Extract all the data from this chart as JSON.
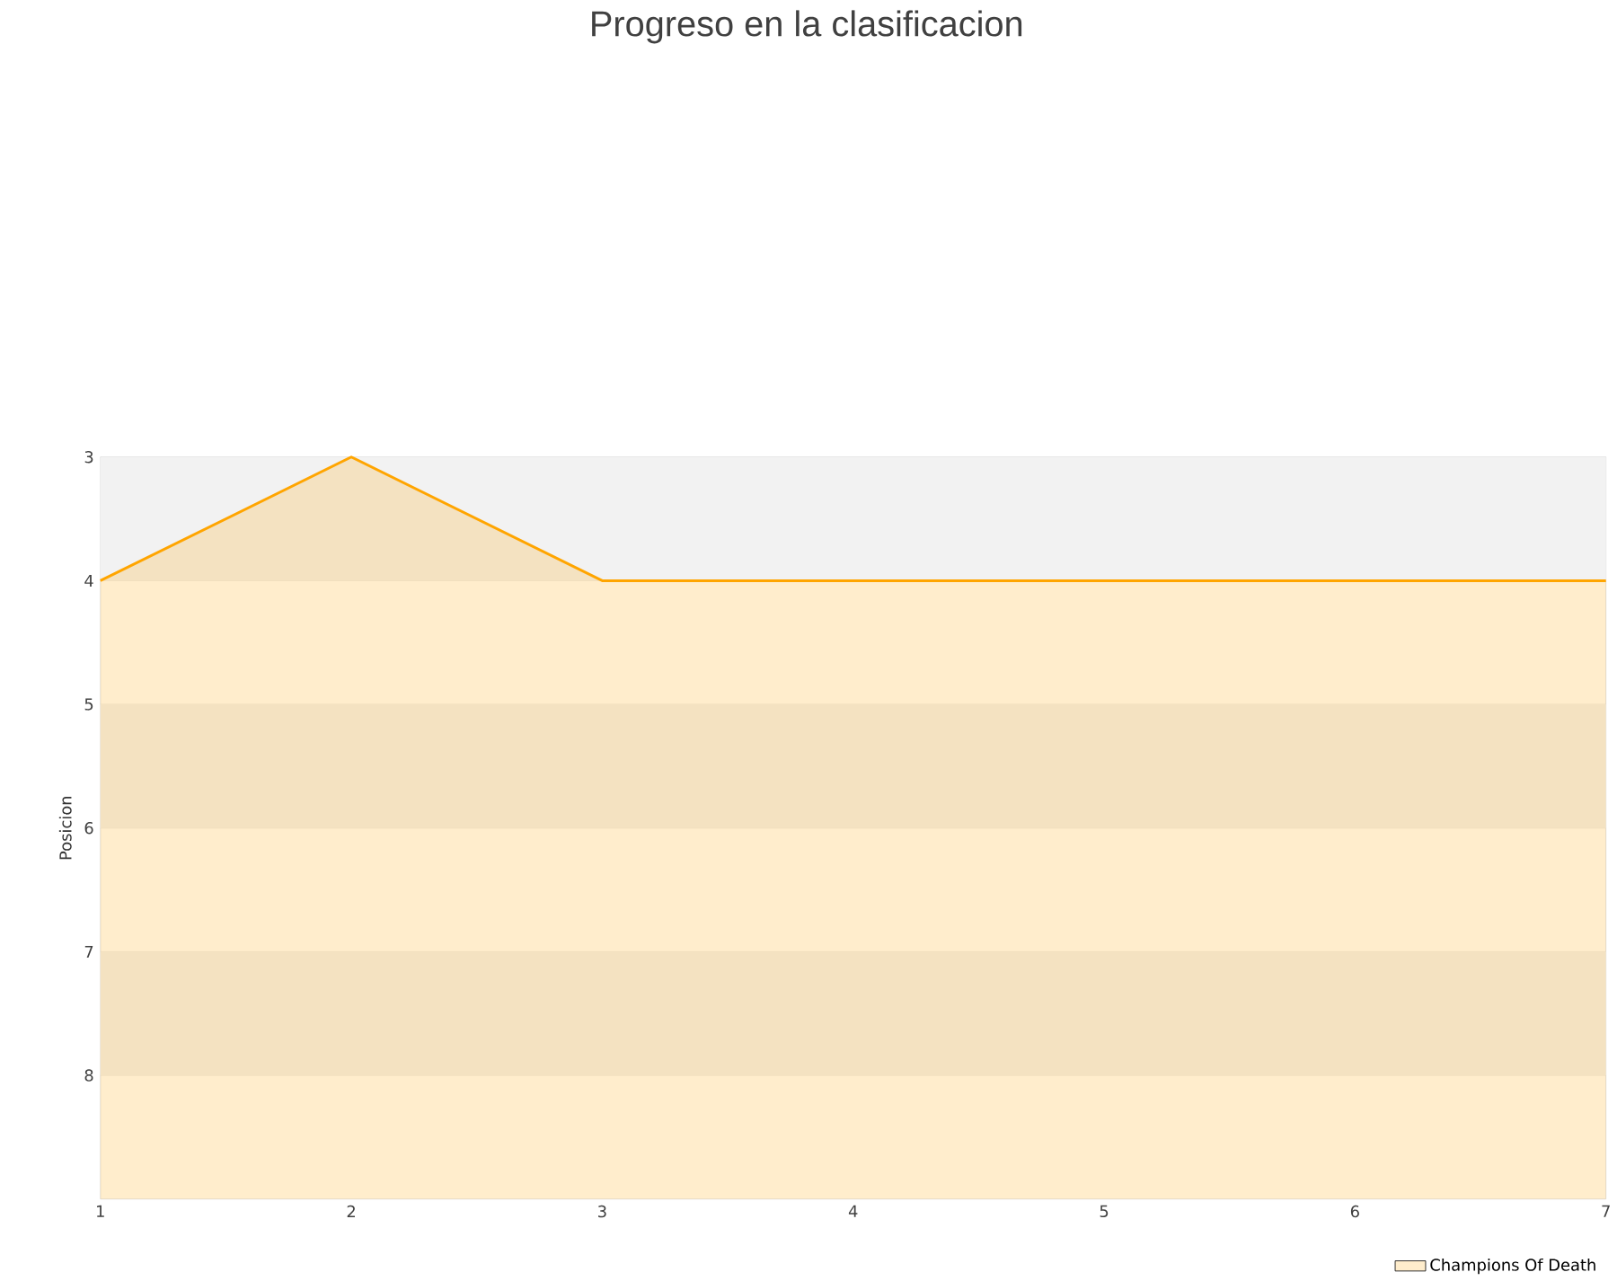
{
  "chart_data": {
    "type": "area",
    "title": "Progreso en la clasificacion",
    "ylabel": "Posicion",
    "x": [
      1,
      2,
      3,
      4,
      5,
      6,
      7
    ],
    "series": [
      {
        "name": "Champions Of Death",
        "color": "#ffa500",
        "values": [
          4,
          3,
          4,
          4,
          4,
          4,
          4
        ]
      }
    ],
    "xlim": [
      1,
      7
    ],
    "xticks": [
      1,
      2,
      3,
      4,
      5,
      6,
      7
    ],
    "ylim": [
      9,
      3
    ],
    "yticks": [
      3,
      4,
      5,
      6,
      7,
      8
    ],
    "grid": "y",
    "legend": "bottom right"
  }
}
